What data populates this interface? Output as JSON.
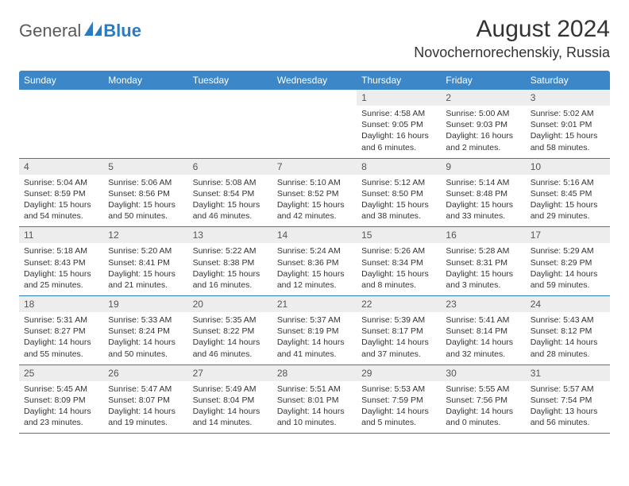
{
  "brand": {
    "general": "General",
    "blue": "Blue"
  },
  "title": {
    "month": "August 2024",
    "location": "Novochernorechenskiy, Russia"
  },
  "colors": {
    "header_bg": "#3b87c8",
    "header_text": "#ffffff",
    "row_border": "#2b7bbf",
    "daynum_bg": "#ededed",
    "text": "#333333",
    "logo_gray": "#5a5a5a",
    "logo_blue": "#2b7bbf"
  },
  "dayNames": [
    "Sunday",
    "Monday",
    "Tuesday",
    "Wednesday",
    "Thursday",
    "Friday",
    "Saturday"
  ],
  "weeks": [
    [
      {
        "n": "",
        "sr": "",
        "ss": "",
        "dl": ""
      },
      {
        "n": "",
        "sr": "",
        "ss": "",
        "dl": ""
      },
      {
        "n": "",
        "sr": "",
        "ss": "",
        "dl": ""
      },
      {
        "n": "",
        "sr": "",
        "ss": "",
        "dl": ""
      },
      {
        "n": "1",
        "sr": "Sunrise: 4:58 AM",
        "ss": "Sunset: 9:05 PM",
        "dl": "Daylight: 16 hours and 6 minutes."
      },
      {
        "n": "2",
        "sr": "Sunrise: 5:00 AM",
        "ss": "Sunset: 9:03 PM",
        "dl": "Daylight: 16 hours and 2 minutes."
      },
      {
        "n": "3",
        "sr": "Sunrise: 5:02 AM",
        "ss": "Sunset: 9:01 PM",
        "dl": "Daylight: 15 hours and 58 minutes."
      }
    ],
    [
      {
        "n": "4",
        "sr": "Sunrise: 5:04 AM",
        "ss": "Sunset: 8:59 PM",
        "dl": "Daylight: 15 hours and 54 minutes."
      },
      {
        "n": "5",
        "sr": "Sunrise: 5:06 AM",
        "ss": "Sunset: 8:56 PM",
        "dl": "Daylight: 15 hours and 50 minutes."
      },
      {
        "n": "6",
        "sr": "Sunrise: 5:08 AM",
        "ss": "Sunset: 8:54 PM",
        "dl": "Daylight: 15 hours and 46 minutes."
      },
      {
        "n": "7",
        "sr": "Sunrise: 5:10 AM",
        "ss": "Sunset: 8:52 PM",
        "dl": "Daylight: 15 hours and 42 minutes."
      },
      {
        "n": "8",
        "sr": "Sunrise: 5:12 AM",
        "ss": "Sunset: 8:50 PM",
        "dl": "Daylight: 15 hours and 38 minutes."
      },
      {
        "n": "9",
        "sr": "Sunrise: 5:14 AM",
        "ss": "Sunset: 8:48 PM",
        "dl": "Daylight: 15 hours and 33 minutes."
      },
      {
        "n": "10",
        "sr": "Sunrise: 5:16 AM",
        "ss": "Sunset: 8:45 PM",
        "dl": "Daylight: 15 hours and 29 minutes."
      }
    ],
    [
      {
        "n": "11",
        "sr": "Sunrise: 5:18 AM",
        "ss": "Sunset: 8:43 PM",
        "dl": "Daylight: 15 hours and 25 minutes."
      },
      {
        "n": "12",
        "sr": "Sunrise: 5:20 AM",
        "ss": "Sunset: 8:41 PM",
        "dl": "Daylight: 15 hours and 21 minutes."
      },
      {
        "n": "13",
        "sr": "Sunrise: 5:22 AM",
        "ss": "Sunset: 8:38 PM",
        "dl": "Daylight: 15 hours and 16 minutes."
      },
      {
        "n": "14",
        "sr": "Sunrise: 5:24 AM",
        "ss": "Sunset: 8:36 PM",
        "dl": "Daylight: 15 hours and 12 minutes."
      },
      {
        "n": "15",
        "sr": "Sunrise: 5:26 AM",
        "ss": "Sunset: 8:34 PM",
        "dl": "Daylight: 15 hours and 8 minutes."
      },
      {
        "n": "16",
        "sr": "Sunrise: 5:28 AM",
        "ss": "Sunset: 8:31 PM",
        "dl": "Daylight: 15 hours and 3 minutes."
      },
      {
        "n": "17",
        "sr": "Sunrise: 5:29 AM",
        "ss": "Sunset: 8:29 PM",
        "dl": "Daylight: 14 hours and 59 minutes."
      }
    ],
    [
      {
        "n": "18",
        "sr": "Sunrise: 5:31 AM",
        "ss": "Sunset: 8:27 PM",
        "dl": "Daylight: 14 hours and 55 minutes."
      },
      {
        "n": "19",
        "sr": "Sunrise: 5:33 AM",
        "ss": "Sunset: 8:24 PM",
        "dl": "Daylight: 14 hours and 50 minutes."
      },
      {
        "n": "20",
        "sr": "Sunrise: 5:35 AM",
        "ss": "Sunset: 8:22 PM",
        "dl": "Daylight: 14 hours and 46 minutes."
      },
      {
        "n": "21",
        "sr": "Sunrise: 5:37 AM",
        "ss": "Sunset: 8:19 PM",
        "dl": "Daylight: 14 hours and 41 minutes."
      },
      {
        "n": "22",
        "sr": "Sunrise: 5:39 AM",
        "ss": "Sunset: 8:17 PM",
        "dl": "Daylight: 14 hours and 37 minutes."
      },
      {
        "n": "23",
        "sr": "Sunrise: 5:41 AM",
        "ss": "Sunset: 8:14 PM",
        "dl": "Daylight: 14 hours and 32 minutes."
      },
      {
        "n": "24",
        "sr": "Sunrise: 5:43 AM",
        "ss": "Sunset: 8:12 PM",
        "dl": "Daylight: 14 hours and 28 minutes."
      }
    ],
    [
      {
        "n": "25",
        "sr": "Sunrise: 5:45 AM",
        "ss": "Sunset: 8:09 PM",
        "dl": "Daylight: 14 hours and 23 minutes."
      },
      {
        "n": "26",
        "sr": "Sunrise: 5:47 AM",
        "ss": "Sunset: 8:07 PM",
        "dl": "Daylight: 14 hours and 19 minutes."
      },
      {
        "n": "27",
        "sr": "Sunrise: 5:49 AM",
        "ss": "Sunset: 8:04 PM",
        "dl": "Daylight: 14 hours and 14 minutes."
      },
      {
        "n": "28",
        "sr": "Sunrise: 5:51 AM",
        "ss": "Sunset: 8:01 PM",
        "dl": "Daylight: 14 hours and 10 minutes."
      },
      {
        "n": "29",
        "sr": "Sunrise: 5:53 AM",
        "ss": "Sunset: 7:59 PM",
        "dl": "Daylight: 14 hours and 5 minutes."
      },
      {
        "n": "30",
        "sr": "Sunrise: 5:55 AM",
        "ss": "Sunset: 7:56 PM",
        "dl": "Daylight: 14 hours and 0 minutes."
      },
      {
        "n": "31",
        "sr": "Sunrise: 5:57 AM",
        "ss": "Sunset: 7:54 PM",
        "dl": "Daylight: 13 hours and 56 minutes."
      }
    ]
  ]
}
